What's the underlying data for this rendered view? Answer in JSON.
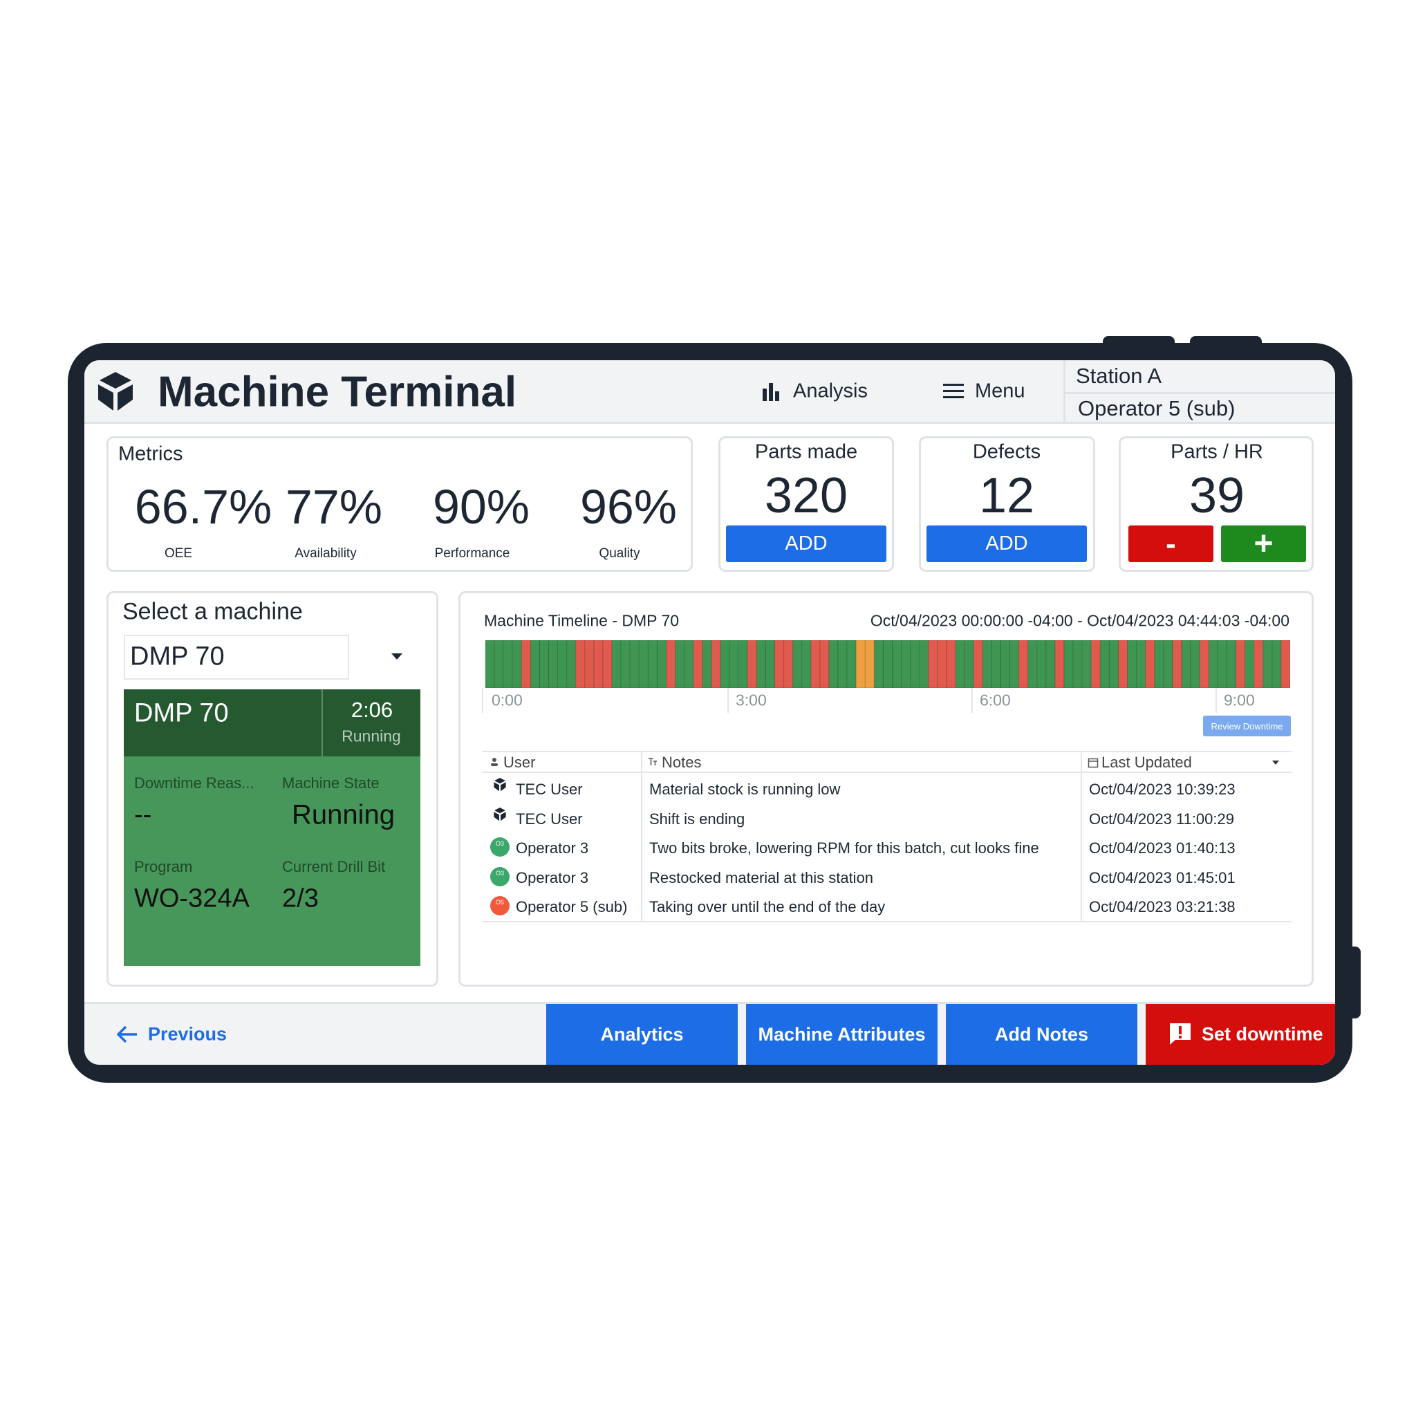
{
  "header": {
    "title": "Machine Terminal",
    "nav": [
      "Analysis",
      "Menu"
    ],
    "station": "Station A",
    "operator": "Operator 5 (sub)"
  },
  "metrics": {
    "title": "Metrics",
    "items": [
      {
        "value": "66.7%",
        "label": "OEE"
      },
      {
        "value": "77%",
        "label": "Availability"
      },
      {
        "value": "90%",
        "label": "Performance"
      },
      {
        "value": "96%",
        "label": "Quality"
      }
    ]
  },
  "counters": [
    {
      "title": "Parts made",
      "value": 320,
      "buttons": [
        "ADD"
      ]
    },
    {
      "title": "Defects",
      "value": 12,
      "buttons": [
        "ADD"
      ]
    },
    {
      "title": "Parts / HR",
      "value": 39,
      "buttons": [
        "-",
        "+"
      ]
    }
  ],
  "machine": {
    "title": "Select a machine",
    "selected": "DMP 70",
    "card": {
      "name": "DMP 70",
      "time": "2:06",
      "status": "Running",
      "fields": [
        {
          "label": "Downtime Reas...",
          "value": "--"
        },
        {
          "label": "Machine State",
          "value": "Running"
        },
        {
          "label": "Program",
          "value": "WO-324A"
        },
        {
          "label": "Current Drill Bit",
          "value": "2/3"
        }
      ]
    }
  },
  "timeline": {
    "title": "Machine Timeline - DMP 70",
    "range": "Oct/04/2023 00:00:00 -04:00 - Oct/04/2023 04:44:03 -04:00",
    "axis_labels": [
      "0:00",
      "3:00",
      "6:00",
      "9:00"
    ],
    "segment_colors": [
      "#3f9552",
      "#3f9552",
      "#3f9552",
      "#3f9552",
      "#e05a4e",
      "#3f9552",
      "#3f9552",
      "#3f9552",
      "#3f9552",
      "#3f9552",
      "#e05a4e",
      "#e05a4e",
      "#e05a4e",
      "#e05a4e",
      "#3f9552",
      "#3f9552",
      "#3f9552",
      "#3f9552",
      "#3f9552",
      "#3f9552",
      "#e05a4e",
      "#3f9552",
      "#3f9552",
      "#e05a4e",
      "#3f9552",
      "#e05a4e",
      "#3f9552",
      "#3f9552",
      "#3f9552",
      "#e05a4e",
      "#3f9552",
      "#3f9552",
      "#e05a4e",
      "#e05a4e",
      "#3f9552",
      "#3f9552",
      "#e05a4e",
      "#e05a4e",
      "#3f9552",
      "#3f9552",
      "#3f9552",
      "#eea040",
      "#eea040",
      "#3f9552",
      "#3f9552",
      "#3f9552",
      "#3f9552",
      "#3f9552",
      "#3f9552",
      "#e05a4e",
      "#e05a4e",
      "#e05a4e",
      "#3f9552",
      "#3f9552",
      "#e05a4e",
      "#3f9552",
      "#3f9552",
      "#3f9552",
      "#3f9552",
      "#e05a4e",
      "#3f9552",
      "#3f9552",
      "#3f9552",
      "#e05a4e",
      "#3f9552",
      "#3f9552",
      "#3f9552",
      "#e05a4e",
      "#3f9552",
      "#3f9552",
      "#e05a4e",
      "#3f9552",
      "#3f9552",
      "#e05a4e",
      "#3f9552",
      "#3f9552",
      "#e05a4e",
      "#3f9552",
      "#3f9552",
      "#e05a4e",
      "#3f9552",
      "#3f9552",
      "#3f9552",
      "#e05a4e",
      "#3f9552",
      "#e05a4e",
      "#3f9552",
      "#3f9552",
      "#e05a4e"
    ],
    "button": "Review Downtime",
    "table": {
      "columns": [
        "User",
        "Notes",
        "Last Updated"
      ],
      "rows": [
        {
          "user": "TEC User",
          "note": "Material stock is running low",
          "updated": "Oct/04/2023 10:39:23"
        },
        {
          "user": "TEC User",
          "note": "Shift is ending",
          "updated": "Oct/04/2023 11:00:29"
        },
        {
          "badge": "O3",
          "badge_color": "#3aa86b",
          "user": "Operator 3",
          "note": "Two bits broke, lowering RPM for this batch, cut looks fine",
          "updated": "Oct/04/2023 01:40:13"
        },
        {
          "badge": "O3",
          "badge_color": "#3aa86b",
          "user": "Operator 3",
          "note": "Restocked material at this station",
          "updated": "Oct/04/2023 01:45:01"
        },
        {
          "badge": "O5",
          "badge_color": "#f05a3a",
          "user": "Operator 5 (sub)",
          "note": "Taking over until the end of the day",
          "updated": "Oct/04/2023 03:21:38"
        }
      ]
    }
  },
  "footer": {
    "back": "Previous",
    "buttons": [
      "Analytics",
      "Machine Attributes",
      "Add Notes",
      "Set downtime"
    ]
  }
}
